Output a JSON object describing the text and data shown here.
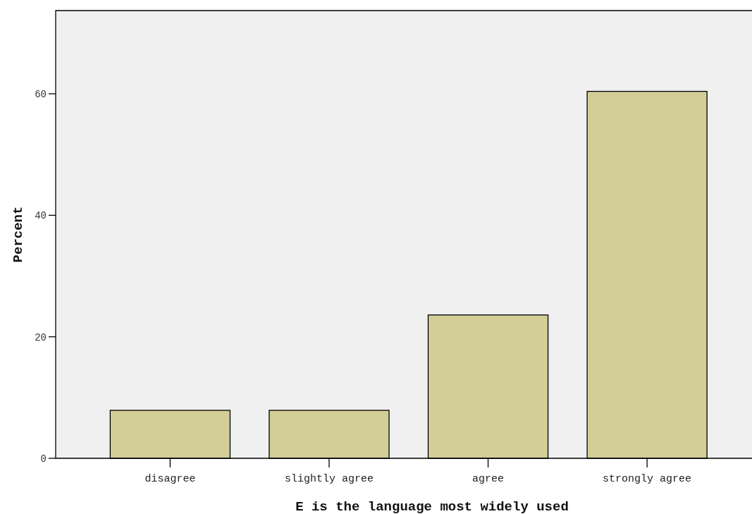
{
  "chart_data": {
    "type": "bar",
    "xlabel": "E is the language most widely used",
    "ylabel": "Percent",
    "categories": [
      "disagree",
      "slightly agree",
      "agree",
      "strongly agree"
    ],
    "values": [
      7.9,
      7.9,
      23.6,
      60.4
    ],
    "color": "#d3ce98",
    "ylim": [
      0,
      73.7
    ],
    "yticks": [
      0,
      20,
      40,
      60
    ]
  }
}
